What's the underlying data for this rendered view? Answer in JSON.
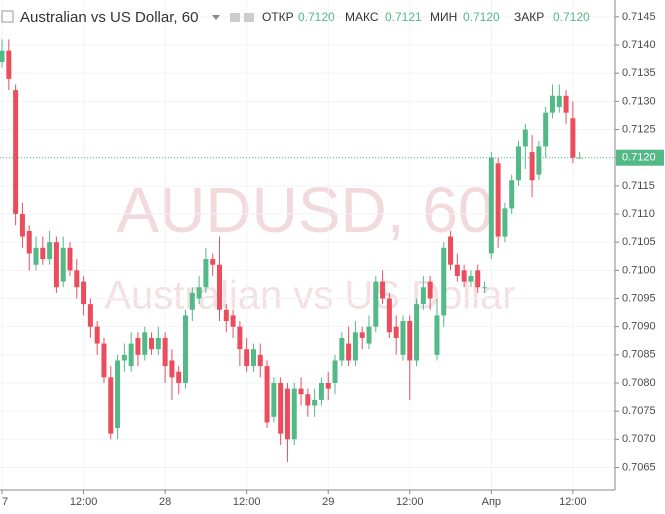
{
  "chart_data": {
    "type": "candlestick",
    "title": "Australian vs US Dollar, 60",
    "watermark": "AUDUSD, 60",
    "watermark_subtitle": "Australian vs US Dollar",
    "ohlc_labels": {
      "open": "ОТКР",
      "high": "МАКС",
      "low": "МИН",
      "close": "ЗАКР"
    },
    "ohlc_values": {
      "open": "0.7120",
      "high": "0.7121",
      "low": "0.7120",
      "close": "0.7120"
    },
    "up_color": "#53b987",
    "down_color": "#eb4d5c",
    "price_line": 0.712,
    "price_label": "0.7120",
    "xlim": [
      -0.3,
      90.2
    ],
    "xticks": [
      {
        "value": 0,
        "label": "7"
      },
      {
        "value": 12,
        "label": "12:00"
      },
      {
        "value": 24,
        "label": "28"
      },
      {
        "value": 36,
        "label": "12:00"
      },
      {
        "value": 48,
        "label": "29"
      },
      {
        "value": 60,
        "label": "12:00"
      },
      {
        "value": 72,
        "label": "Апр"
      },
      {
        "value": 84,
        "label": "12:00"
      }
    ],
    "ylim": [
      0.7061,
      0.7148
    ],
    "yticks": [
      {
        "value": 0.7065,
        "label": "0.7065"
      },
      {
        "value": 0.707,
        "label": "0.7070"
      },
      {
        "value": 0.7075,
        "label": "0.7075"
      },
      {
        "value": 0.708,
        "label": "0.7080"
      },
      {
        "value": 0.7085,
        "label": "0.7085"
      },
      {
        "value": 0.709,
        "label": "0.7090"
      },
      {
        "value": 0.7095,
        "label": "0.7095"
      },
      {
        "value": 0.71,
        "label": "0.7100"
      },
      {
        "value": 0.7105,
        "label": "0.7105"
      },
      {
        "value": 0.711,
        "label": "0.7110"
      },
      {
        "value": 0.7115,
        "label": "0.7115"
      },
      {
        "value": 0.712,
        "label": "0.7120"
      },
      {
        "value": 0.7125,
        "label": "0.7125"
      },
      {
        "value": 0.713,
        "label": "0.7130"
      },
      {
        "value": 0.7135,
        "label": "0.7135"
      },
      {
        "value": 0.714,
        "label": "0.7140"
      },
      {
        "value": 0.7145,
        "label": "0.7145"
      }
    ],
    "x": [
      0,
      1,
      2,
      3,
      4,
      5,
      6,
      7,
      8,
      9,
      10,
      11,
      12,
      13,
      14,
      15,
      16,
      17,
      18,
      19,
      20,
      21,
      22,
      23,
      24,
      25,
      26,
      27,
      28,
      29,
      30,
      31,
      32,
      33,
      34,
      35,
      36,
      37,
      38,
      39,
      40,
      41,
      42,
      43,
      44,
      45,
      46,
      47,
      48,
      49,
      50,
      51,
      52,
      53,
      54,
      55,
      56,
      57,
      58,
      59,
      60,
      61,
      62,
      63,
      64,
      65,
      66,
      67,
      68,
      69,
      70,
      71,
      72,
      73,
      74,
      75,
      76,
      77,
      78,
      79,
      80,
      81,
      82,
      83,
      84,
      85
    ],
    "open": [
      0.7137,
      0.7139,
      0.7132,
      0.711,
      0.7107,
      0.7101,
      0.7104,
      0.7102,
      0.7105,
      0.7098,
      0.7104,
      0.71,
      0.7098,
      0.7094,
      0.709,
      0.7087,
      0.7081,
      0.7072,
      0.7084,
      0.7083,
      0.7088,
      0.7085,
      0.7088,
      0.7086,
      0.7088,
      0.7084,
      0.7082,
      0.708,
      0.7093,
      0.7095,
      0.7097,
      0.7102,
      0.7101,
      0.7093,
      0.7092,
      0.709,
      0.7086,
      0.7083,
      0.7085,
      0.7083,
      0.7074,
      0.708,
      0.7079,
      0.707,
      0.7079,
      0.7078,
      0.7076,
      0.7077,
      0.708,
      0.708,
      0.7084,
      0.7087,
      0.7084,
      0.7089,
      0.7087,
      0.709,
      0.7098,
      0.7095,
      0.709,
      0.7085,
      0.7091,
      0.7084,
      0.7094,
      0.7098,
      0.7085,
      0.7092,
      0.7106,
      0.7101,
      0.71,
      0.7098,
      0.71,
      0.7097,
      0.7103,
      0.7119,
      0.7106,
      0.7111,
      0.7116,
      0.7122,
      0.7121,
      0.7117,
      0.7122,
      0.7128,
      0.7129,
      0.7131,
      0.7127,
      0.712
    ],
    "high": [
      0.7141,
      0.7141,
      0.7133,
      0.7112,
      0.7108,
      0.7106,
      0.7106,
      0.7107,
      0.7106,
      0.7106,
      0.7105,
      0.7102,
      0.7099,
      0.7095,
      0.7091,
      0.7088,
      0.7083,
      0.7085,
      0.7087,
      0.7089,
      0.7089,
      0.709,
      0.7089,
      0.709,
      0.7089,
      0.7086,
      0.7083,
      0.7093,
      0.7097,
      0.7099,
      0.7104,
      0.7103,
      0.7106,
      0.7094,
      0.7093,
      0.7091,
      0.7088,
      0.7087,
      0.7087,
      0.7084,
      0.7081,
      0.7081,
      0.708,
      0.708,
      0.7081,
      0.7079,
      0.7079,
      0.7081,
      0.7082,
      0.7085,
      0.7089,
      0.709,
      0.7091,
      0.709,
      0.7092,
      0.7099,
      0.71,
      0.7096,
      0.7092,
      0.7092,
      0.7092,
      0.7095,
      0.7099,
      0.7099,
      0.7095,
      0.7105,
      0.7107,
      0.7103,
      0.7101,
      0.71,
      0.7101,
      0.7098,
      0.7121,
      0.712,
      0.7112,
      0.7117,
      0.7123,
      0.7126,
      0.7124,
      0.7123,
      0.7129,
      0.7133,
      0.7133,
      0.7132,
      0.713,
      0.7121
    ],
    "low": [
      0.7136,
      0.7132,
      0.7108,
      0.7104,
      0.71,
      0.71,
      0.7101,
      0.7101,
      0.7096,
      0.7097,
      0.7099,
      0.7095,
      0.7092,
      0.7088,
      0.7085,
      0.708,
      0.707,
      0.707,
      0.7082,
      0.7082,
      0.7083,
      0.7084,
      0.7085,
      0.7085,
      0.708,
      0.7077,
      0.7078,
      0.7079,
      0.7091,
      0.7094,
      0.7096,
      0.7099,
      0.7091,
      0.7089,
      0.7088,
      0.7083,
      0.7082,
      0.7082,
      0.7081,
      0.7072,
      0.7073,
      0.7069,
      0.7066,
      0.7069,
      0.7076,
      0.7074,
      0.7074,
      0.7076,
      0.7077,
      0.7078,
      0.7083,
      0.7083,
      0.7083,
      0.7086,
      0.7086,
      0.7089,
      0.7094,
      0.7088,
      0.7085,
      0.7084,
      0.7077,
      0.7083,
      0.7093,
      0.7093,
      0.7084,
      0.709,
      0.71,
      0.7098,
      0.7097,
      0.7097,
      0.7096,
      0.7096,
      0.7102,
      0.7104,
      0.7105,
      0.711,
      0.7115,
      0.7118,
      0.7113,
      0.7116,
      0.712,
      0.7127,
      0.7128,
      0.7126,
      0.7119,
      0.712
    ],
    "close": [
      0.7139,
      0.7134,
      0.711,
      0.7106,
      0.7103,
      0.7104,
      0.7102,
      0.7105,
      0.7097,
      0.7104,
      0.71,
      0.7097,
      0.7094,
      0.709,
      0.7087,
      0.7081,
      0.7071,
      0.7084,
      0.7085,
      0.7087,
      0.7085,
      0.7089,
      0.7086,
      0.7088,
      0.7083,
      0.7081,
      0.708,
      0.7092,
      0.7096,
      0.7097,
      0.7102,
      0.7101,
      0.7093,
      0.7091,
      0.709,
      0.7086,
      0.7083,
      0.7086,
      0.7083,
      0.7073,
      0.708,
      0.7071,
      0.707,
      0.7079,
      0.7078,
      0.7076,
      0.7077,
      0.708,
      0.7079,
      0.7084,
      0.7088,
      0.7084,
      0.7089,
      0.7088,
      0.709,
      0.7098,
      0.7095,
      0.7089,
      0.7088,
      0.7091,
      0.7084,
      0.7094,
      0.7097,
      0.7095,
      0.7092,
      0.7104,
      0.7101,
      0.7099,
      0.7098,
      0.7099,
      0.7097,
      0.7097,
      0.712,
      0.7106,
      0.7111,
      0.7116,
      0.7122,
      0.7125,
      0.7116,
      0.7122,
      0.7128,
      0.7131,
      0.7131,
      0.7128,
      0.712,
      0.712
    ]
  }
}
